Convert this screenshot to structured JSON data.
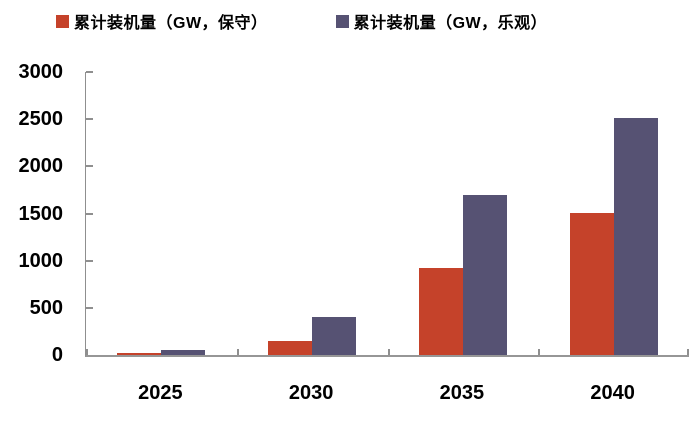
{
  "chart_data": {
    "type": "bar",
    "title": "",
    "xlabel": "",
    "ylabel": "",
    "categories": [
      "2025",
      "2030",
      "2035",
      "2040"
    ],
    "series": [
      {
        "key": "conservative",
        "name": "累计装机量（GW，保守）",
        "color": "#c5422a",
        "values": [
          25,
          150,
          920,
          1510
        ]
      },
      {
        "key": "optimistic",
        "name": "累计装机量（GW，乐观）",
        "color": "#565273",
        "values": [
          50,
          400,
          1700,
          2510
        ]
      }
    ],
    "ylim": [
      0,
      3000
    ],
    "yticks": [
      0,
      500,
      1000,
      1500,
      2000,
      2500,
      3000
    ],
    "grid": false,
    "legend_position": "top"
  },
  "axis": {
    "line_color": "#8f8f8f",
    "label_color": "#000000"
  },
  "background": "#ffffff"
}
